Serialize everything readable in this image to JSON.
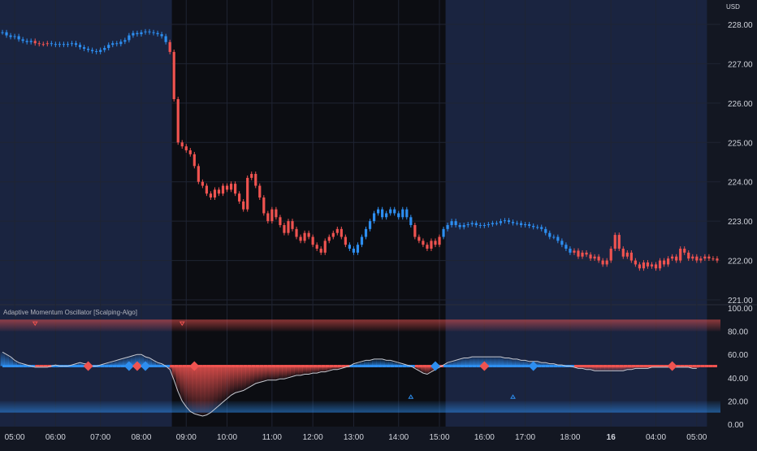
{
  "currency": "USD",
  "indicator": {
    "title": "Adaptive Momentum Oscillator [Scalping-Algo]"
  },
  "colors": {
    "background": "#131722",
    "bull": "#2d8ef0",
    "bear": "#ef5350",
    "oscillator_line": "#c8cad2",
    "signal_line_bull": "#2d8ef0",
    "signal_line_bear": "#ef5350",
    "grid": "#1f2433",
    "axis_text": "#d1d4dc",
    "premarket_shade": "#1a2440",
    "regular_session_shade": "#0c0d12"
  },
  "chart_data": [
    {
      "type": "candlestick",
      "title": "",
      "ylabel": "USD",
      "ylim": [
        220.8,
        228.4
      ],
      "y_ticks": [
        "228.00",
        "227.00",
        "226.00",
        "225.00",
        "224.00",
        "223.00",
        "222.00",
        "221.00"
      ],
      "x_ticks": [
        "05:00",
        "06:00",
        "07:00",
        "08:00",
        "09:00",
        "10:00",
        "11:00",
        "12:00",
        "13:00",
        "14:00",
        "15:00",
        "16:00",
        "17:00",
        "18:00",
        "16",
        "04:00",
        "05:00"
      ],
      "session_shading": [
        {
          "session": "pre-market",
          "from_index": 0,
          "to_index": 41
        },
        {
          "session": "regular",
          "from_index": 42,
          "to_index": 108
        },
        {
          "session": "after-hours",
          "from_index": 109,
          "to_index": 172
        }
      ],
      "close": [
        227.8,
        227.72,
        227.68,
        227.7,
        227.62,
        227.58,
        227.55,
        227.58,
        227.52,
        227.5,
        227.5,
        227.52,
        227.5,
        227.48,
        227.5,
        227.48,
        227.5,
        227.52,
        227.48,
        227.42,
        227.38,
        227.35,
        227.32,
        227.3,
        227.35,
        227.4,
        227.48,
        227.52,
        227.5,
        227.56,
        227.6,
        227.72,
        227.78,
        227.75,
        227.8,
        227.82,
        227.8,
        227.78,
        227.75,
        227.7,
        227.55,
        227.3,
        226.1,
        225.0,
        224.9,
        224.8,
        224.7,
        224.4,
        224.0,
        223.9,
        223.7,
        223.6,
        223.8,
        223.7,
        223.9,
        223.8,
        223.95,
        223.7,
        223.5,
        223.3,
        224.1,
        224.2,
        223.9,
        223.6,
        223.2,
        223.0,
        223.3,
        223.1,
        222.9,
        222.7,
        223.0,
        222.8,
        222.6,
        222.5,
        222.7,
        222.6,
        222.4,
        222.3,
        222.2,
        222.5,
        222.6,
        222.7,
        222.8,
        222.6,
        222.4,
        222.3,
        222.2,
        222.4,
        222.6,
        222.8,
        223.0,
        223.2,
        223.3,
        223.1,
        223.2,
        223.3,
        223.2,
        223.1,
        223.3,
        223.1,
        222.9,
        222.6,
        222.5,
        222.4,
        222.3,
        222.5,
        222.4,
        222.6,
        222.8,
        222.9,
        223.0,
        222.9,
        222.85,
        222.9,
        222.92,
        222.95,
        222.9,
        222.88,
        222.9,
        222.92,
        222.95,
        222.95,
        223.0,
        223.02,
        222.98,
        222.95,
        222.95,
        222.9,
        222.92,
        222.88,
        222.85,
        222.85,
        222.8,
        222.7,
        222.6,
        222.6,
        222.5,
        222.4,
        222.3,
        222.2,
        222.25,
        222.1,
        222.2,
        222.15,
        222.05,
        222.1,
        222.0,
        221.9,
        222.0,
        222.3,
        222.65,
        222.3,
        222.1,
        222.2,
        222.0,
        221.9,
        221.8,
        221.95,
        221.85,
        221.9,
        221.8,
        222.0,
        221.9,
        222.05,
        222.1,
        222.0,
        222.3,
        222.2,
        222.05,
        222.1,
        222.0,
        222.05,
        222.1,
        222.05,
        222.05,
        222.0
      ],
      "up_color_note": "blue = bullish trend, red = bearish trend"
    },
    {
      "type": "line",
      "title": "Adaptive Momentum Oscillator [Scalping-Algo]",
      "ylim": [
        0,
        100
      ],
      "y_ticks": [
        "100.00",
        "80.00",
        "60.00",
        "40.00",
        "20.00",
        "0.00"
      ],
      "signal_level": 50,
      "overbought_zone": [
        80,
        90
      ],
      "oversold_zone": [
        10,
        20
      ],
      "series": [
        {
          "name": "",
          "values": [
            62,
            60,
            58,
            55,
            53,
            52,
            51,
            50,
            49,
            49,
            49,
            49,
            50,
            51,
            50,
            50,
            50,
            51,
            52,
            53,
            52,
            52,
            50,
            50,
            51,
            52,
            53,
            54,
            55,
            56,
            57,
            58,
            59,
            60,
            60,
            58,
            57,
            55,
            53,
            52,
            50,
            47,
            38,
            28,
            20,
            15,
            11,
            9,
            8,
            7,
            8,
            10,
            13,
            16,
            19,
            22,
            25,
            27,
            28,
            29,
            31,
            33,
            35,
            36,
            37,
            38,
            38,
            38,
            39,
            39,
            40,
            41,
            42,
            42,
            43,
            43,
            44,
            44,
            45,
            45,
            46,
            47,
            47,
            48,
            49,
            50,
            52,
            53,
            54,
            55,
            55,
            56,
            56,
            56,
            55,
            55,
            54,
            53,
            52,
            51,
            50,
            48,
            46,
            44,
            43,
            45,
            47,
            49,
            51,
            53,
            54,
            55,
            56,
            57,
            57,
            58,
            58,
            58,
            58,
            58,
            58,
            58,
            58,
            57,
            57,
            56,
            56,
            55,
            55,
            54,
            54,
            54,
            53,
            53,
            52,
            52,
            51,
            51,
            50,
            50,
            49,
            48,
            48,
            47,
            47,
            46,
            46,
            46,
            46,
            46,
            46,
            46,
            46,
            47,
            47,
            48,
            48,
            48,
            48,
            49,
            49,
            49,
            49,
            49,
            49,
            49,
            49,
            49,
            49,
            48,
            48
          ]
        }
      ],
      "signals": [
        {
          "index": 21,
          "direction": "bear"
        },
        {
          "index": 31,
          "direction": "bull"
        },
        {
          "index": 33,
          "direction": "bear"
        },
        {
          "index": 35,
          "direction": "bull"
        },
        {
          "index": 47,
          "direction": "bear"
        },
        {
          "index": 106,
          "direction": "bull"
        },
        {
          "index": 118,
          "direction": "bear"
        },
        {
          "index": 130,
          "direction": "bull"
        },
        {
          "index": 164,
          "direction": "bear"
        }
      ],
      "triangles": [
        {
          "index": 8,
          "kind": "down"
        },
        {
          "index": 44,
          "kind": "down"
        },
        {
          "index": 100,
          "kind": "up"
        },
        {
          "index": 125,
          "kind": "up"
        }
      ]
    }
  ]
}
